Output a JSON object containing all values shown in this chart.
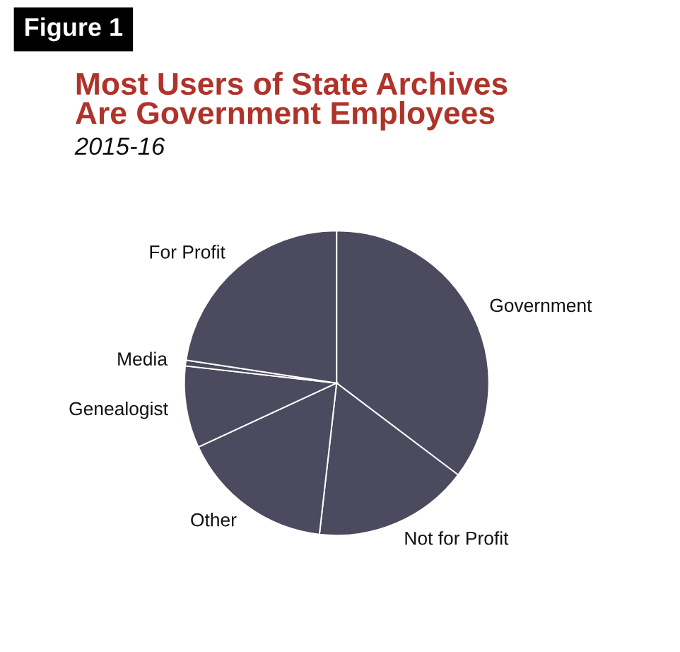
{
  "chart_data": {
    "type": "pie",
    "title": "Most Users of State Archives\nAre Government Employees",
    "subtitle": "2015-16",
    "annotations": [
      "Figure 1"
    ],
    "categories": [
      "Government",
      "Not for Profit",
      "Other",
      "Genealogist",
      "Media",
      "For Profit"
    ],
    "values": [
      35.3,
      16.5,
      16.3,
      8.7,
      0.6,
      22.6
    ],
    "colors": [
      "#4b4a5e",
      "#4b4a5e",
      "#4b4a5e",
      "#4b4a5e",
      "#4b4a5e",
      "#4b4a5e"
    ],
    "legend": false
  }
}
